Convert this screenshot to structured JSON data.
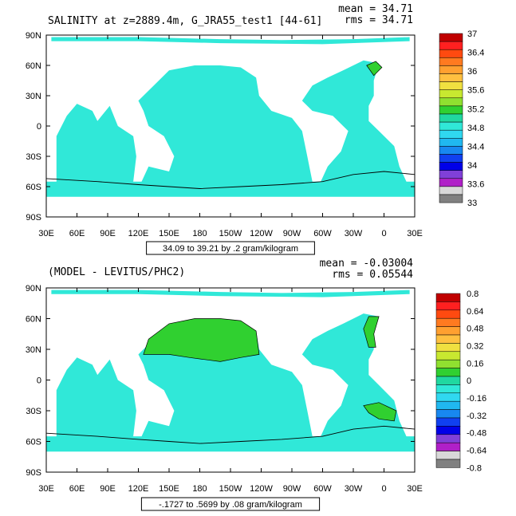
{
  "chart_data": [
    {
      "type": "heatmap",
      "title": "SALINITY at z=2889.4m, G_JRA55_test1 [44-61]",
      "stats": {
        "mean_text": "mean = 34.71",
        "rms_text": "rms = 34.71"
      },
      "range_text": "34.09 to 39.21 by .2 gram/kilogram",
      "xticks": [
        "30E",
        "60E",
        "90E",
        "120E",
        "150E",
        "180",
        "150W",
        "120W",
        "90W",
        "60W",
        "30W",
        "0",
        "30E"
      ],
      "yticks": [
        "90N",
        "60N",
        "30N",
        "0",
        "30S",
        "60S",
        "90S"
      ],
      "xlim": [
        30,
        390
      ],
      "ylim": [
        -90,
        90
      ],
      "colorbar": {
        "labels": [
          "37",
          "36.4",
          "36",
          "35.6",
          "35.2",
          "34.8",
          "34.4",
          "34",
          "33.6",
          "33"
        ],
        "colors": [
          "#c00000",
          "#ff2020",
          "#ff4a10",
          "#ff7a20",
          "#ffa030",
          "#ffc040",
          "#f0e040",
          "#c8e830",
          "#90e030",
          "#30d030",
          "#20d8a0",
          "#30e8d8",
          "#30d8f0",
          "#20b8f0",
          "#1888f0",
          "#1040f0",
          "#0000e8",
          "#8040d8",
          "#b020c8",
          "#d8d8d8",
          "#808080"
        ],
        "dominant_value_color": "#30e8d8"
      }
    },
    {
      "type": "heatmap",
      "title": "(MODEL - LEVITUS/PHC2)",
      "stats": {
        "mean_text": "mean = -0.03004",
        "rms_text": "rms = 0.05544"
      },
      "range_text": "-.1727 to .5699 by .08 gram/kilogram",
      "xticks": [
        "30E",
        "60E",
        "90E",
        "120E",
        "150E",
        "180",
        "150W",
        "120W",
        "90W",
        "60W",
        "30W",
        "0",
        "30E"
      ],
      "yticks": [
        "90N",
        "60N",
        "30N",
        "0",
        "30S",
        "60S",
        "90S"
      ],
      "xlim": [
        30,
        390
      ],
      "ylim": [
        -90,
        90
      ],
      "colorbar": {
        "labels": [
          "0.8",
          "0.64",
          "0.48",
          "0.32",
          "0.16",
          "0",
          "-0.16",
          "-0.32",
          "-0.48",
          "-0.64",
          "-0.8"
        ],
        "colors": [
          "#c00000",
          "#ff2020",
          "#ff4a10",
          "#ff7a20",
          "#ffa030",
          "#ffc040",
          "#f0e040",
          "#c8e830",
          "#90e030",
          "#30d030",
          "#20d8a0",
          "#30e8d8",
          "#30d8f0",
          "#20b8f0",
          "#1888f0",
          "#1040f0",
          "#0000e8",
          "#8040d8",
          "#b020c8",
          "#d8d8d8",
          "#808080"
        ],
        "dominant_value_colors": [
          "#30e8d8",
          "#30d030"
        ]
      }
    }
  ]
}
